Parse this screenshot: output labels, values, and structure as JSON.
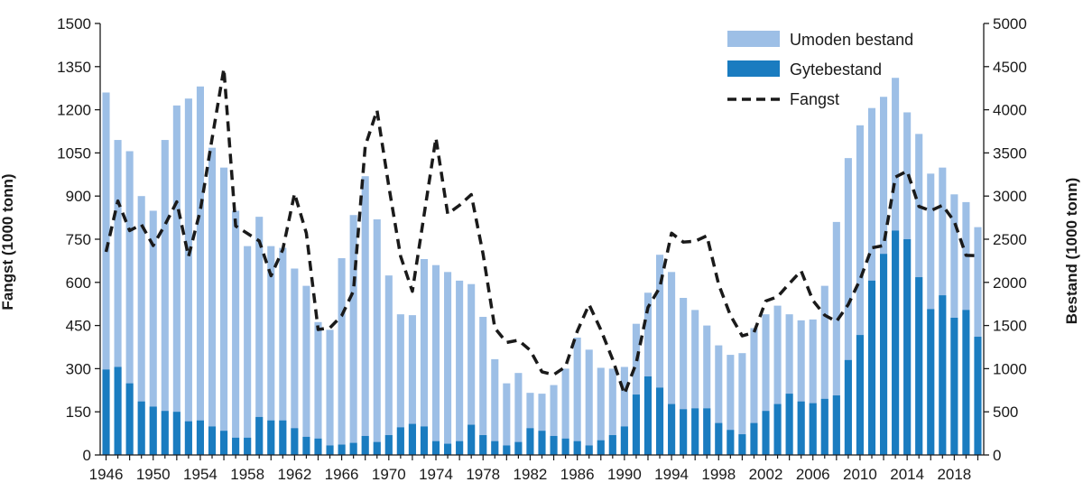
{
  "chart_data": {
    "type": "bar",
    "ylabel_left": "Fangst (1000 tonn)",
    "ylabel_right": "Bestand (1000 tonn)",
    "ylim_left": [
      0,
      1500
    ],
    "ylim_right": [
      0,
      5000
    ],
    "yticks_left": [
      "0",
      "150",
      "300",
      "450",
      "600",
      "750",
      "900",
      "1050",
      "1200",
      "1350",
      "1500"
    ],
    "yticks_right": [
      "0",
      "500",
      "1000",
      "1500",
      "2000",
      "2500",
      "3000",
      "3500",
      "4000",
      "4500",
      "5000"
    ],
    "xticks": [
      "1946",
      "1950",
      "1954",
      "1958",
      "1962",
      "1966",
      "1970",
      "1974",
      "1978",
      "1982",
      "1986",
      "1990",
      "1994",
      "1998",
      "2002",
      "2006",
      "2010",
      "2014",
      "2018"
    ],
    "legend": {
      "position": "top-right",
      "items": [
        "Umoden bestand",
        "Gytebestand",
        "Fangst"
      ]
    },
    "colors": {
      "umoden": "#9dbfe6",
      "gyte": "#1a7cc0",
      "fangst": "#1a1a1a",
      "axis": "#1a1a1a"
    },
    "years": [
      1946,
      1947,
      1948,
      1949,
      1950,
      1951,
      1952,
      1953,
      1954,
      1955,
      1956,
      1957,
      1958,
      1959,
      1960,
      1961,
      1962,
      1963,
      1964,
      1965,
      1966,
      1967,
      1968,
      1969,
      1970,
      1971,
      1972,
      1973,
      1974,
      1975,
      1976,
      1977,
      1978,
      1979,
      1980,
      1981,
      1982,
      1983,
      1984,
      1985,
      1986,
      1987,
      1988,
      1989,
      1990,
      1991,
      1992,
      1993,
      1994,
      1995,
      1996,
      1997,
      1998,
      1999,
      2000,
      2001,
      2002,
      2003,
      2004,
      2005,
      2006,
      2007,
      2008,
      2009,
      2010,
      2011,
      2012,
      2013,
      2014,
      2015,
      2016,
      2017,
      2018,
      2019,
      2020
    ],
    "series": [
      {
        "name": "Umoden bestand",
        "axis": "right",
        "comment_total": "total bar height = Gytebestand + Umoden bestand",
        "total": [
          4200,
          3650,
          3520,
          3000,
          2830,
          3650,
          4050,
          4130,
          4270,
          3560,
          3330,
          2830,
          2420,
          2760,
          2420,
          2400,
          2160,
          1960,
          1540,
          1450,
          2280,
          2780,
          3230,
          2730,
          2080,
          1630,
          1620,
          2270,
          2200,
          2120,
          2020,
          1980,
          1600,
          1110,
          830,
          950,
          720,
          710,
          810,
          1000,
          1360,
          1220,
          1010,
          1000,
          1020,
          1520,
          1880,
          2320,
          2120,
          1820,
          1680,
          1500,
          1270,
          1160,
          1180,
          1470,
          1630,
          1730,
          1630,
          1560,
          1570,
          1960,
          2700,
          3440,
          3820,
          4020,
          4150,
          4370,
          3970,
          3720,
          3260,
          3330,
          3020,
          2930,
          2640
        ]
      },
      {
        "name": "Gytebestand",
        "axis": "right",
        "values": [
          990,
          1020,
          830,
          620,
          560,
          510,
          500,
          390,
          400,
          330,
          280,
          200,
          200,
          440,
          400,
          400,
          310,
          210,
          190,
          110,
          120,
          140,
          220,
          150,
          230,
          320,
          360,
          330,
          160,
          130,
          160,
          350,
          230,
          160,
          110,
          150,
          310,
          280,
          220,
          190,
          160,
          110,
          170,
          230,
          330,
          700,
          910,
          780,
          590,
          530,
          540,
          540,
          370,
          290,
          240,
          370,
          510,
          590,
          710,
          620,
          600,
          650,
          690,
          1100,
          1390,
          2020,
          2330,
          2600,
          2500,
          2060,
          1690,
          1850,
          1590,
          1680,
          1370
        ]
      },
      {
        "name": "Fangst",
        "axis": "left",
        "type": "line",
        "values": [
          706,
          883,
          780,
          801,
          728,
          800,
          880,
          690,
          850,
          1100,
          1343,
          796,
          770,
          744,
          623,
          714,
          909,
          771,
          436,
          442,
          484,
          570,
          1074,
          1198,
          934,
          691,
          569,
          836,
          1102,
          838,
          868,
          905,
          699,
          441,
          391,
          399,
          364,
          289,
          279,
          307,
          430,
          523,
          435,
          332,
          212,
          319,
          513,
          582,
          771,
          740,
          743,
          762,
          593,
          485,
          414,
          426,
          535,
          550,
          596,
          640,
          537,
          486,
          464,
          523,
          609,
          720,
          728,
          966,
          987,
          864,
          849,
          868,
          812,
          694,
          693
        ]
      }
    ]
  }
}
